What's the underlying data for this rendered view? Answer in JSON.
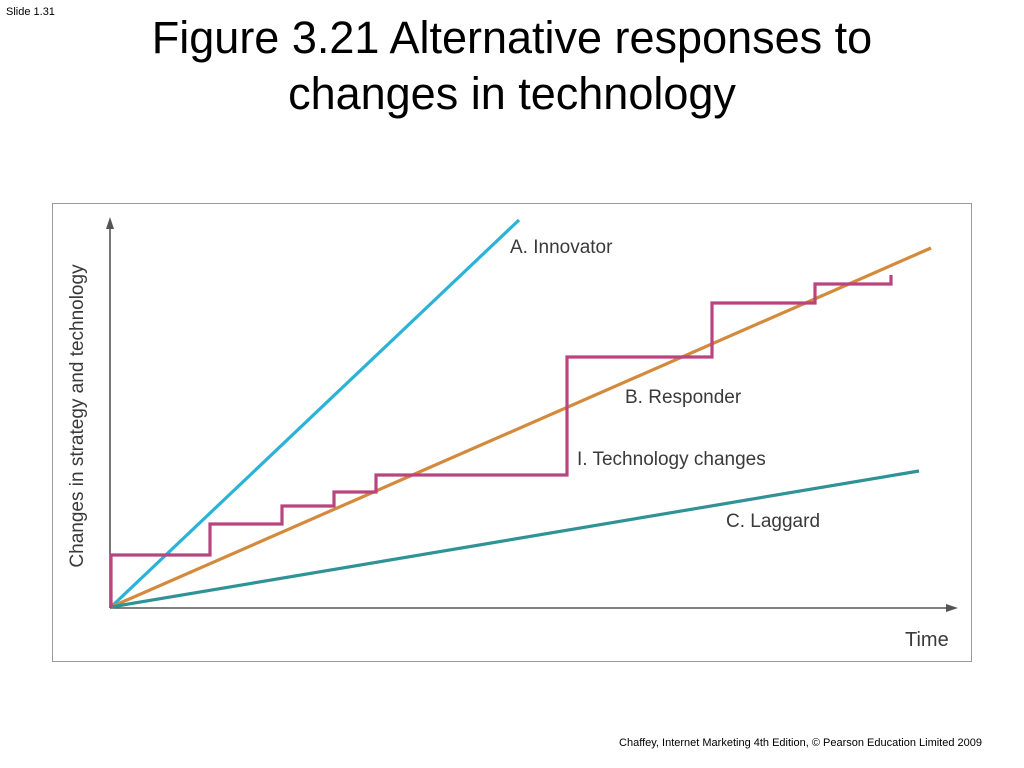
{
  "slide": {
    "number": "Slide 1.31",
    "title_line1": "Figure 3.21  Alternative responses to",
    "title_line2": "changes in technology",
    "footer": "Chaffey, Internet Marketing 4th Edition, © Pearson Education Limited 2009"
  },
  "diagram": {
    "y_axis_label": "Changes in strategy and technology",
    "x_axis_label": "Time",
    "lines": [
      {
        "id": "innovator",
        "label": "A. Innovator",
        "color": "#2ab3d6"
      },
      {
        "id": "responder",
        "label": "B. Responder",
        "color": "#d48a3c"
      },
      {
        "id": "technology",
        "label": "I. Technology changes",
        "color": "#b8457f"
      },
      {
        "id": "laggard",
        "label": "C. Laggard",
        "color": "#2f9396"
      }
    ]
  }
}
